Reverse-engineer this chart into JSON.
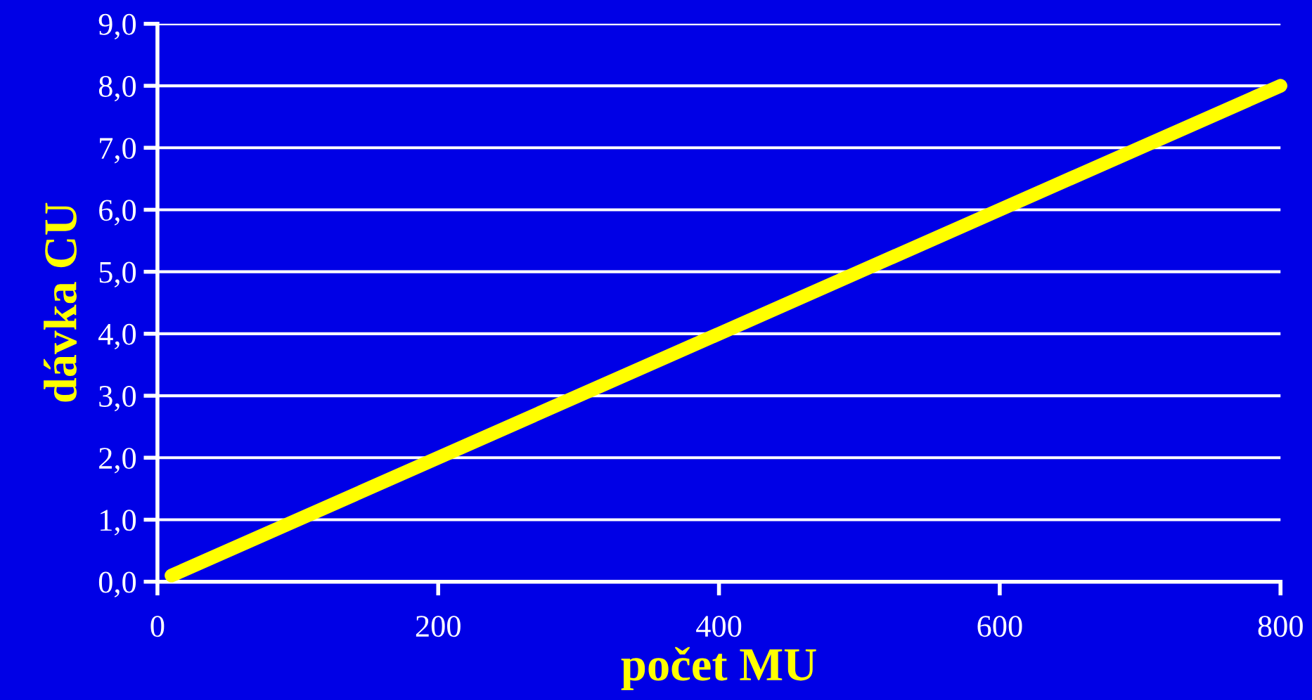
{
  "chart_data": {
    "type": "line",
    "x": [
      10,
      800
    ],
    "series": [
      {
        "color": "#ffff00",
        "values": [
          0.1,
          8.0
        ]
      }
    ],
    "xlabel": "počet MU",
    "ylabel": "dávka CU",
    "xlim": [
      0,
      800
    ],
    "xticks": [
      0,
      200,
      400,
      600,
      800
    ],
    "ylim": [
      0,
      9
    ],
    "yticks": [
      {
        "value": 0,
        "label": "0,0"
      },
      {
        "value": 1,
        "label": "1,0"
      },
      {
        "value": 2,
        "label": "2,0"
      },
      {
        "value": 3,
        "label": "3,0"
      },
      {
        "value": 4,
        "label": "4,0"
      },
      {
        "value": 5,
        "label": "5,0"
      },
      {
        "value": 6,
        "label": "6,0"
      },
      {
        "value": 7,
        "label": "7,0"
      },
      {
        "value": 8,
        "label": "8,0"
      },
      {
        "value": 9,
        "label": "9,0"
      }
    ],
    "grid": "y",
    "marker": "none",
    "line_style": "solid",
    "legend": false
  }
}
